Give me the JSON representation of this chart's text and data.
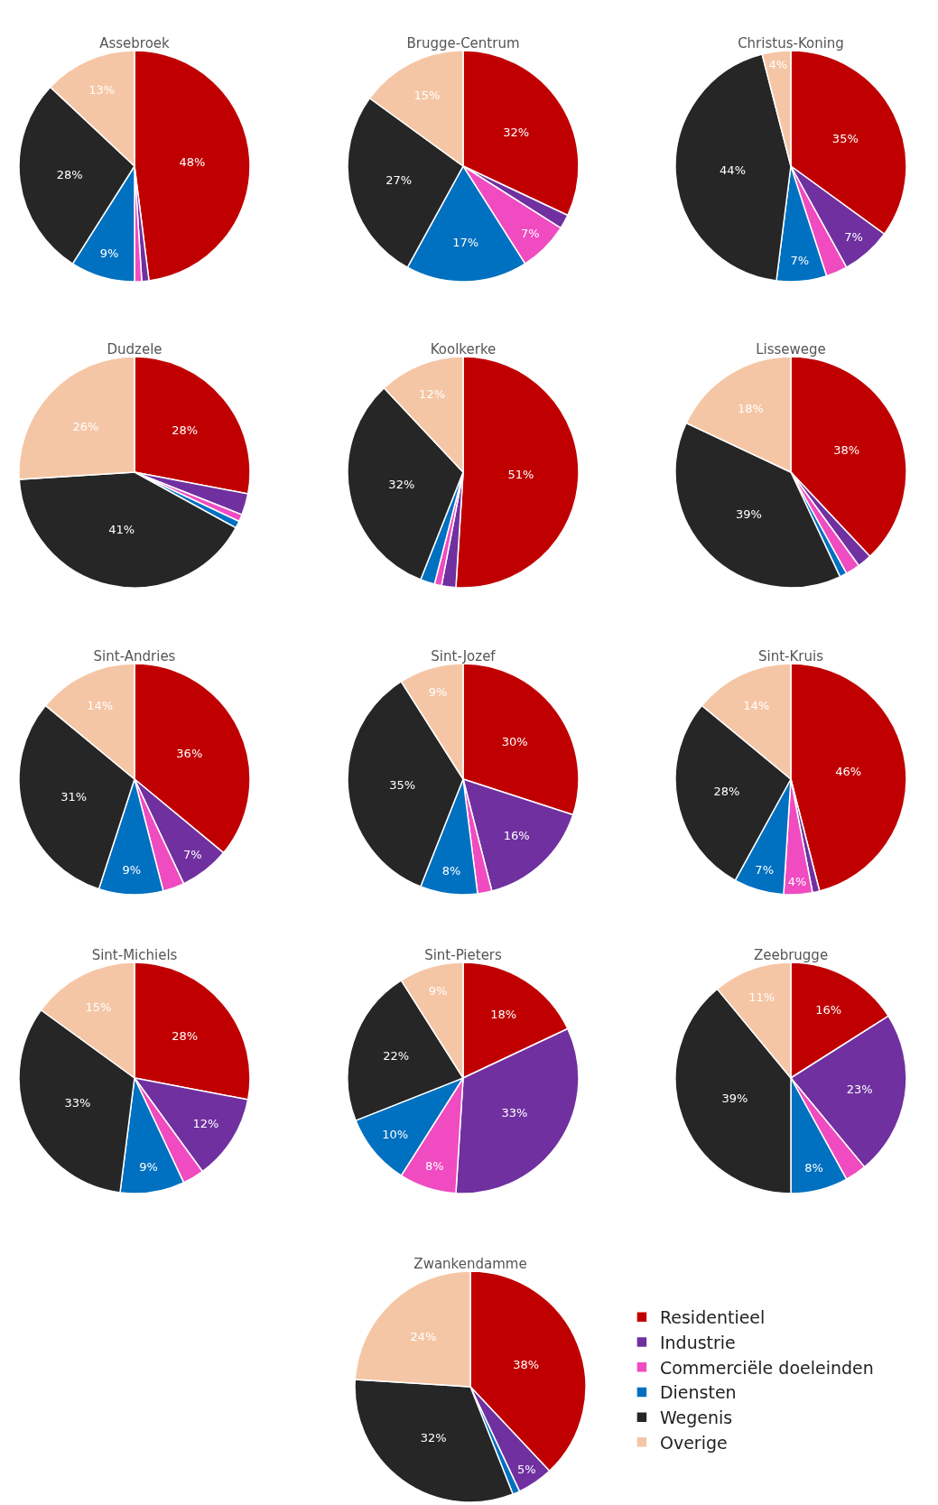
{
  "chart_data": [
    {
      "type": "pie",
      "title": "Assebroek",
      "categories": [
        "Residentieel",
        "Industrie",
        "Commerciële doeleinden",
        "Diensten",
        "Wegenis",
        "Overige"
      ],
      "colors": [
        "#c00000",
        "#7030a0",
        "#f04bc0",
        "#0070c0",
        "#262626",
        "#f5c6a5"
      ],
      "values": [
        48,
        1,
        1,
        9,
        28,
        13
      ],
      "value_labels": [
        "48%",
        null,
        null,
        "9%",
        "28%",
        "13%"
      ],
      "legend": "bottom right"
    },
    {
      "type": "pie",
      "title": "Brugge-Centrum",
      "categories": [
        null,
        null,
        null,
        null,
        null,
        null
      ],
      "colors": [
        "#c00000",
        "#7030a0",
        "#f04bc0",
        "#0070c0",
        "#262626",
        "#f5c6a5"
      ],
      "values": [
        32,
        2,
        7,
        17,
        27,
        15
      ],
      "value_labels": [
        "32%",
        null,
        "7%",
        "17%",
        "27%",
        "15%"
      ]
    },
    {
      "type": "pie",
      "title": "Christus-Koning",
      "categories": [
        null,
        null,
        null,
        null,
        null,
        null
      ],
      "colors": [
        "#c00000",
        "#7030a0",
        "#f04bc0",
        "#0070c0",
        "#262626",
        "#f5c6a5"
      ],
      "values": [
        35,
        7,
        3,
        7,
        44,
        4
      ],
      "value_labels": [
        "35%",
        "7%",
        null,
        "7%",
        "44%",
        "4%"
      ]
    },
    {
      "type": "pie",
      "title": "Dudzele",
      "categories": [
        null,
        null,
        null,
        null,
        null,
        null
      ],
      "colors": [
        "#c00000",
        "#7030a0",
        "#f04bc0",
        "#0070c0",
        "#262626",
        "#f5c6a5"
      ],
      "values": [
        28,
        3,
        1,
        1,
        41,
        26
      ],
      "value_labels": [
        "28%",
        null,
        null,
        null,
        "41%",
        "26%"
      ]
    },
    {
      "type": "pie",
      "title": "Koolkerke",
      "categories": [
        null,
        null,
        null,
        null,
        null,
        null
      ],
      "colors": [
        "#c00000",
        "#7030a0",
        "#f04bc0",
        "#0070c0",
        "#262626",
        "#f5c6a5"
      ],
      "values": [
        51,
        2,
        1,
        2,
        32,
        12
      ],
      "value_labels": [
        "51%",
        null,
        null,
        null,
        "32%",
        "12%"
      ]
    },
    {
      "type": "pie",
      "title": "Lissewege",
      "categories": [
        null,
        null,
        null,
        null,
        null,
        null
      ],
      "colors": [
        "#c00000",
        "#7030a0",
        "#f04bc0",
        "#0070c0",
        "#262626",
        "#f5c6a5"
      ],
      "values": [
        38,
        2,
        2,
        1,
        39,
        18
      ],
      "value_labels": [
        "38%",
        null,
        null,
        null,
        "39%",
        "18%"
      ]
    },
    {
      "type": "pie",
      "title": "Sint-Andries",
      "categories": [
        null,
        null,
        null,
        null,
        null,
        null
      ],
      "colors": [
        "#c00000",
        "#7030a0",
        "#f04bc0",
        "#0070c0",
        "#262626",
        "#f5c6a5"
      ],
      "values": [
        36,
        7,
        3,
        9,
        31,
        14
      ],
      "value_labels": [
        "36%",
        "7%",
        null,
        "9%",
        "31%",
        "14%"
      ]
    },
    {
      "type": "pie",
      "title": "Sint-Jozef",
      "categories": [
        null,
        null,
        null,
        null,
        null,
        null
      ],
      "colors": [
        "#c00000",
        "#7030a0",
        "#f04bc0",
        "#0070c0",
        "#262626",
        "#f5c6a5"
      ],
      "values": [
        30,
        16,
        2,
        8,
        35,
        9
      ],
      "value_labels": [
        "30%",
        "16%",
        null,
        "8%",
        "35%",
        "9%"
      ]
    },
    {
      "type": "pie",
      "title": "Sint-Kruis",
      "categories": [
        null,
        null,
        null,
        null,
        null,
        null
      ],
      "colors": [
        "#c00000",
        "#7030a0",
        "#f04bc0",
        "#0070c0",
        "#262626",
        "#f5c6a5"
      ],
      "values": [
        46,
        1,
        4,
        7,
        28,
        14
      ],
      "value_labels": [
        "46%",
        null,
        "4%",
        "7%",
        "28%",
        "14%"
      ]
    },
    {
      "type": "pie",
      "title": "Sint-Michiels",
      "categories": [
        null,
        null,
        null,
        null,
        null,
        null
      ],
      "colors": [
        "#c00000",
        "#7030a0",
        "#f04bc0",
        "#0070c0",
        "#262626",
        "#f5c6a5"
      ],
      "values": [
        28,
        12,
        3,
        9,
        33,
        15
      ],
      "value_labels": [
        "28%",
        "12%",
        null,
        "9%",
        "33%",
        "15%"
      ]
    },
    {
      "type": "pie",
      "title": "Sint-Pieters",
      "categories": [
        null,
        null,
        null,
        null,
        null,
        null
      ],
      "colors": [
        "#c00000",
        "#7030a0",
        "#f04bc0",
        "#0070c0",
        "#262626",
        "#f5c6a5"
      ],
      "values": [
        18,
        33,
        8,
        10,
        22,
        9
      ],
      "value_labels": [
        "18%",
        "33%",
        "8%",
        "10%",
        "22%",
        "9%"
      ]
    },
    {
      "type": "pie",
      "title": "Zeebrugge",
      "categories": [
        null,
        null,
        null,
        null,
        null,
        null
      ],
      "colors": [
        "#c00000",
        "#7030a0",
        "#f04bc0",
        "#0070c0",
        "#262626",
        "#f5c6a5"
      ],
      "values": [
        16,
        23,
        3,
        8,
        39,
        11
      ],
      "value_labels": [
        "16%",
        "23%",
        null,
        "8%",
        "39%",
        "11%"
      ]
    },
    {
      "type": "pie",
      "title": "Zwankendamme",
      "categories": [
        null,
        null,
        null,
        null,
        null,
        null
      ],
      "colors": [
        "#c00000",
        "#7030a0",
        "#f04bc0",
        "#0070c0",
        "#262626",
        "#f5c6a5"
      ],
      "values": [
        38,
        5,
        null,
        1,
        32,
        24
      ],
      "value_labels": [
        "38%",
        "5%",
        null,
        null,
        "32%",
        "24%"
      ]
    }
  ]
}
